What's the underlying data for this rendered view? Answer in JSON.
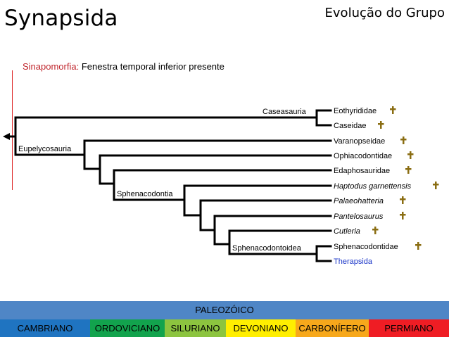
{
  "header": {
    "title": "Synapsida",
    "subtitle": "Evolução do Grupo"
  },
  "synapomorphy": {
    "label": "Sinapomorfia:",
    "text": " Fenestra temporal inferior presente"
  },
  "cladogram": {
    "nodes": {
      "caseasauria": "Caseasauria",
      "eupelycosauria": "Eupelycosauria",
      "sphenacodontia": "Sphenacodontia",
      "sphenacodontoidea": "Sphenacodontoidea"
    },
    "taxa": [
      {
        "name": "Eothyrididae",
        "extinct": true,
        "italic": false
      },
      {
        "name": "Caseidae",
        "extinct": true,
        "italic": false
      },
      {
        "name": "Varanopseidae",
        "extinct": true,
        "italic": false
      },
      {
        "name": "Ophiacodontidae",
        "extinct": true,
        "italic": false
      },
      {
        "name": "Edaphosauridae",
        "extinct": true,
        "italic": false
      },
      {
        "name": "Haptodus garnettensis",
        "extinct": true,
        "italic": true
      },
      {
        "name": "Palaeohatteria",
        "extinct": true,
        "italic": true
      },
      {
        "name": "Pantelosaurus",
        "extinct": true,
        "italic": true
      },
      {
        "name": "Cutleria",
        "extinct": true,
        "italic": true
      },
      {
        "name": "Sphenacodontidae",
        "extinct": true,
        "italic": false
      },
      {
        "name": "Therapsida",
        "extinct": false,
        "italic": false,
        "color": "#1a35c8"
      }
    ]
  },
  "timescale": {
    "era": "PALEOZÓICO",
    "era_color": "#4f86c6",
    "periods": [
      {
        "name": "CAMBRIANO",
        "color": "#1f74c1"
      },
      {
        "name": "ORDOVICIANO",
        "color": "#12a34d"
      },
      {
        "name": "SILURIANO",
        "color": "#8cc43f"
      },
      {
        "name": "DEVONIANO",
        "color": "#ffee00"
      },
      {
        "name": "CARBONÍFERO",
        "color": "#f7a81b"
      },
      {
        "name": "PERMIANO",
        "color": "#ef1d24"
      }
    ]
  }
}
